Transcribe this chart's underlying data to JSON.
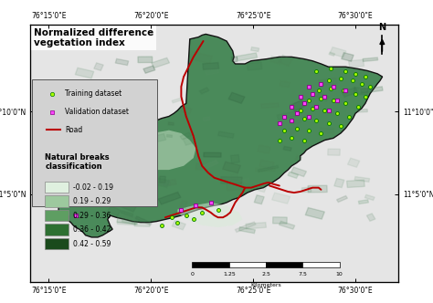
{
  "title": "Normalized difference\nvegetation index",
  "title_fontsize": 7.5,
  "lon_labels": [
    "76°15'0\"E",
    "76°20'0\"E",
    "76°25'0\"E",
    "76°30'0\"E"
  ],
  "lon_ticks": [
    76.25,
    76.3333,
    76.4167,
    76.5
  ],
  "lat_labels": [
    "11°5'0\"N",
    "11°10'0\"N"
  ],
  "lat_ticks": [
    11.0833,
    11.1667
  ],
  "road_color": "#bb0000",
  "training_color": "#aaff00",
  "training_edge": "#007700",
  "validation_color": "#ff44ff",
  "validation_edge": "#880088",
  "ndvi_classes": [
    {
      "label": "-0.02 - 0.19",
      "color": "#dff0df"
    },
    {
      "label": "0.19 - 0.29",
      "color": "#9dc99e"
    },
    {
      "label": "0.29 - 0.36",
      "color": "#5e9e62"
    },
    {
      "label": "0.36 - 0.42",
      "color": "#2e7032"
    },
    {
      "label": "0.42 - 0.59",
      "color": "#1a4a1c"
    }
  ],
  "scalebar_ticks": [
    "0",
    "1.25",
    "2.5",
    "",
    "7.5",
    "",
    "10"
  ],
  "scalebar_label": "Kilometers",
  "lon_min": 76.235,
  "lon_max": 76.535,
  "lat_min": 10.995,
  "lat_max": 11.255,
  "map_frame_color": "#222222",
  "outer_bg": "#f0f0f0"
}
